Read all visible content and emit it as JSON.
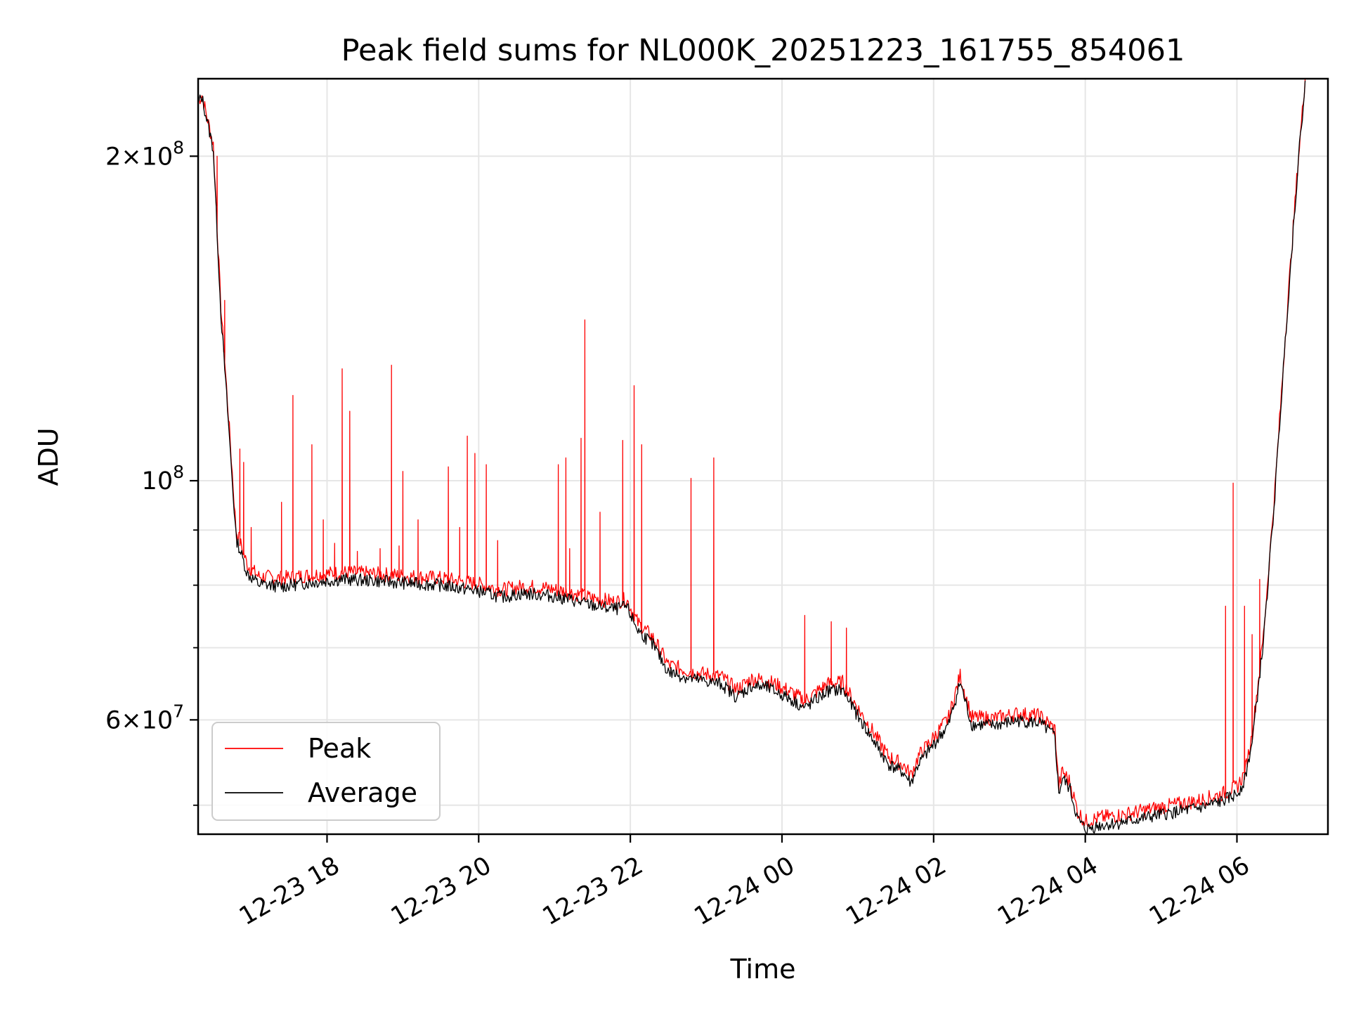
{
  "chart_data": {
    "type": "line",
    "title": "Peak field sums for NL000K_20251223_161755_854061",
    "xlabel": "Time",
    "ylabel": "ADU",
    "yscale": "log",
    "ylim": [
      47000000,
      236000000
    ],
    "xlim_hours": [
      16.3,
      31.2
    ],
    "x_unit": "hours since 2025-12-23 00:00",
    "grid": true,
    "legend_position": "lower-left",
    "x_ticks": [
      {
        "value": 18,
        "label": "12-23 18"
      },
      {
        "value": 20,
        "label": "12-23 20"
      },
      {
        "value": 22,
        "label": "12-23 22"
      },
      {
        "value": 24,
        "label": "12-24 00"
      },
      {
        "value": 26,
        "label": "12-24 02"
      },
      {
        "value": 28,
        "label": "12-24 04"
      },
      {
        "value": 30,
        "label": "12-24 06"
      }
    ],
    "y_major_ticks": [
      {
        "value": 60000000,
        "base": "6",
        "exp": "7"
      },
      {
        "value": 100000000,
        "base": "",
        "exp": "8"
      },
      {
        "value": 200000000,
        "base": "2",
        "exp": "8"
      }
    ],
    "y_minor_ticks": [
      50000000,
      70000000,
      80000000,
      90000000
    ],
    "series": [
      {
        "name": "Peak",
        "color": "#ff0000",
        "x": [
          16.3,
          16.35,
          16.5,
          16.6,
          16.7,
          16.8,
          16.95,
          17.1,
          17.4,
          17.8,
          18.2,
          18.6,
          19.0,
          19.5,
          20.0,
          20.3,
          20.6,
          20.9,
          21.2,
          21.5,
          21.8,
          21.95,
          22.1,
          22.3,
          22.5,
          22.8,
          23.2,
          23.4,
          23.6,
          23.8,
          24.1,
          24.3,
          24.6,
          24.8,
          25.0,
          25.2,
          25.4,
          25.6,
          25.7,
          25.8,
          26.0,
          26.2,
          26.35,
          26.5,
          26.8,
          27.1,
          27.4,
          27.6,
          27.65,
          27.7,
          27.8,
          27.9,
          28.0,
          28.2,
          28.5,
          29.0,
          29.5,
          29.8,
          30.0,
          30.1,
          30.2,
          30.35,
          30.5,
          30.65,
          30.8,
          30.9
        ],
        "y": [
          225000000,
          228000000,
          205000000,
          145000000,
          115000000,
          90000000,
          83500000,
          81500000,
          81200000,
          81800000,
          82200000,
          82000000,
          81600000,
          81200000,
          80200000,
          79200000,
          79800000,
          79500000,
          78800000,
          77800000,
          77200000,
          77600000,
          73800000,
          71500000,
          67500000,
          66500000,
          65800000,
          64000000,
          65500000,
          65300000,
          63800000,
          62500000,
          64800000,
          65000000,
          61500000,
          58500000,
          55500000,
          54500000,
          53300000,
          55500000,
          57800000,
          60300000,
          66000000,
          60300000,
          60200000,
          60800000,
          60500000,
          58800000,
          52000000,
          53800000,
          52500000,
          49300000,
          48300000,
          48700000,
          49000000,
          49800000,
          50500000,
          51200000,
          52000000,
          53500000,
          58000000,
          72000000,
          98000000,
          140000000,
          195000000,
          236000000
        ],
        "spikes": [
          {
            "x": 16.55,
            "y": 200000000
          },
          {
            "x": 16.65,
            "y": 147000000
          },
          {
            "x": 16.85,
            "y": 107000000
          },
          {
            "x": 16.9,
            "y": 104000000
          },
          {
            "x": 17.0,
            "y": 90500000
          },
          {
            "x": 17.4,
            "y": 95500000
          },
          {
            "x": 17.55,
            "y": 120000000
          },
          {
            "x": 17.8,
            "y": 108000000
          },
          {
            "x": 17.95,
            "y": 92000000
          },
          {
            "x": 18.1,
            "y": 87500000
          },
          {
            "x": 18.2,
            "y": 127000000
          },
          {
            "x": 18.3,
            "y": 116000000
          },
          {
            "x": 18.4,
            "y": 86000000
          },
          {
            "x": 18.7,
            "y": 86500000
          },
          {
            "x": 18.85,
            "y": 128000000
          },
          {
            "x": 18.95,
            "y": 87000000
          },
          {
            "x": 19.0,
            "y": 102000000
          },
          {
            "x": 19.2,
            "y": 92000000
          },
          {
            "x": 19.6,
            "y": 103000000
          },
          {
            "x": 19.75,
            "y": 90500000
          },
          {
            "x": 19.85,
            "y": 110000000
          },
          {
            "x": 19.95,
            "y": 106000000
          },
          {
            "x": 20.1,
            "y": 103500000
          },
          {
            "x": 20.25,
            "y": 88000000
          },
          {
            "x": 21.05,
            "y": 103500000
          },
          {
            "x": 21.15,
            "y": 105000000
          },
          {
            "x": 21.2,
            "y": 86500000
          },
          {
            "x": 21.35,
            "y": 109500000
          },
          {
            "x": 21.4,
            "y": 141000000
          },
          {
            "x": 21.6,
            "y": 93500000
          },
          {
            "x": 21.9,
            "y": 109000000
          },
          {
            "x": 22.05,
            "y": 122500000
          },
          {
            "x": 22.15,
            "y": 108000000
          },
          {
            "x": 22.8,
            "y": 100500000
          },
          {
            "x": 23.1,
            "y": 105000000
          },
          {
            "x": 24.3,
            "y": 75000000
          },
          {
            "x": 24.65,
            "y": 74000000
          },
          {
            "x": 24.85,
            "y": 73000000
          },
          {
            "x": 29.85,
            "y": 76500000
          },
          {
            "x": 29.95,
            "y": 99500000
          },
          {
            "x": 30.1,
            "y": 76500000
          },
          {
            "x": 30.2,
            "y": 72000000
          },
          {
            "x": 30.3,
            "y": 81000000
          }
        ]
      },
      {
        "name": "Average",
        "color": "#000000",
        "x": [
          16.3,
          16.35,
          16.5,
          16.6,
          16.7,
          16.8,
          16.95,
          17.1,
          17.4,
          17.8,
          18.2,
          18.6,
          19.0,
          19.5,
          20.0,
          20.3,
          20.6,
          20.9,
          21.2,
          21.5,
          21.8,
          21.95,
          22.1,
          22.3,
          22.5,
          22.8,
          23.2,
          23.4,
          23.6,
          23.8,
          24.1,
          24.3,
          24.6,
          24.8,
          25.0,
          25.2,
          25.4,
          25.6,
          25.7,
          25.8,
          26.0,
          26.2,
          26.35,
          26.5,
          26.8,
          27.1,
          27.4,
          27.6,
          27.65,
          27.7,
          27.8,
          27.9,
          28.0,
          28.2,
          28.5,
          29.0,
          29.5,
          29.8,
          30.0,
          30.1,
          30.2,
          30.35,
          30.5,
          30.65,
          30.8,
          30.9
        ],
        "y": [
          224000000,
          227000000,
          203000000,
          143000000,
          113000000,
          88500000,
          82000000,
          80200000,
          79800000,
          80500000,
          81000000,
          80800000,
          80400000,
          80000000,
          79000000,
          78000000,
          78600000,
          78300000,
          77600000,
          76600000,
          76000000,
          76400000,
          72700000,
          70400000,
          66500000,
          65500000,
          64800000,
          63000000,
          64500000,
          64300000,
          62800000,
          61500000,
          63800000,
          64000000,
          60500000,
          57500000,
          54600000,
          53600000,
          52400000,
          54600000,
          56900000,
          59400000,
          65000000,
          59400000,
          59300000,
          59900000,
          59600000,
          57900000,
          51200000,
          53000000,
          51700000,
          48500000,
          47500000,
          47900000,
          48200000,
          49000000,
          49700000,
          50400000,
          51200000,
          52700000,
          57200000,
          71000000,
          97000000,
          139000000,
          194000000,
          235000000
        ]
      }
    ]
  }
}
